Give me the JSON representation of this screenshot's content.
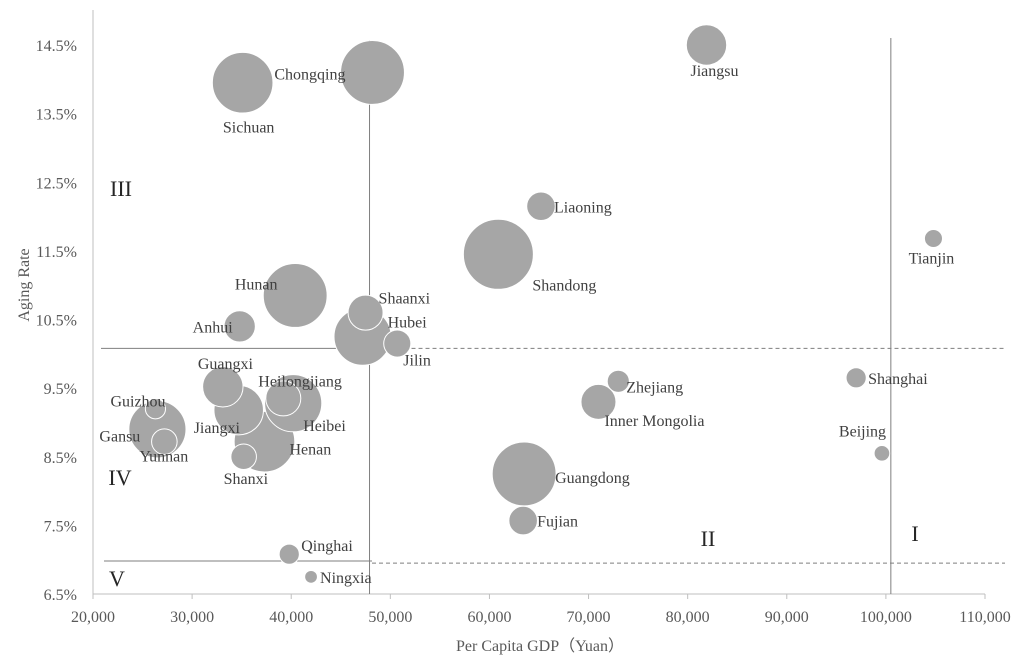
{
  "chart_data": {
    "type": "bubble",
    "xlabel": "Per Capita GDP（Yuan）",
    "ylabel": "Aging Rate",
    "xlim": [
      20000,
      110000
    ],
    "ylim": [
      6.5,
      15.0
    ],
    "x_ticks": [
      "20,000",
      "30,000",
      "40,000",
      "50,000",
      "60,000",
      "70,000",
      "80,000",
      "90,000",
      "100,000",
      "110,000"
    ],
    "y_ticks": [
      "6.5%",
      "7.5%",
      "8.5%",
      "9.5%",
      "10.5%",
      "11.5%",
      "12.5%",
      "13.5%",
      "14.5%"
    ],
    "points": [
      {
        "name": "Jiangsu",
        "x": 81900,
        "y": 14.5,
        "size": 2
      },
      {
        "name": "Chongqing",
        "x": 48200,
        "y": 14.1,
        "size": 5
      },
      {
        "name": "Sichuan",
        "x": 35100,
        "y": 13.95,
        "size": 4.5
      },
      {
        "name": "Liaoning",
        "x": 65200,
        "y": 12.15,
        "size": 1
      },
      {
        "name": "Tianjin",
        "x": 104800,
        "y": 11.68,
        "size": 0.4
      },
      {
        "name": "Shandong",
        "x": 60900,
        "y": 11.45,
        "size": 6
      },
      {
        "name": "Hunan",
        "x": 40400,
        "y": 10.85,
        "size": 5
      },
      {
        "name": "Shaanxi",
        "x": 47500,
        "y": 10.6,
        "size": 1.5
      },
      {
        "name": "Anhui",
        "x": 34800,
        "y": 10.4,
        "size": 1.2
      },
      {
        "name": "Hubei",
        "x": 47200,
        "y": 10.25,
        "size": 4
      },
      {
        "name": "Jilin",
        "x": 50700,
        "y": 10.15,
        "size": 0.9
      },
      {
        "name": "Guangxi",
        "x": 33100,
        "y": 9.52,
        "size": 2
      },
      {
        "name": "Zhejiang",
        "x": 73000,
        "y": 9.6,
        "size": 0.6
      },
      {
        "name": "Shanghai",
        "x": 97000,
        "y": 9.65,
        "size": 0.5
      },
      {
        "name": "Heilongjiang",
        "x": 39200,
        "y": 9.35,
        "size": 1.5
      },
      {
        "name": "Inner Mongolia",
        "x": 71000,
        "y": 9.3,
        "size": 1.5
      },
      {
        "name": "Heibei",
        "x": 40200,
        "y": 9.28,
        "size": 4
      },
      {
        "name": "Guizhou",
        "x": 26300,
        "y": 9.2,
        "size": 0.5
      },
      {
        "name": "Jiangxi",
        "x": 34700,
        "y": 9.18,
        "size": 3
      },
      {
        "name": "Gansu",
        "x": 26500,
        "y": 8.9,
        "size": 4
      },
      {
        "name": "Yunnan",
        "x": 27200,
        "y": 8.72,
        "size": 0.8
      },
      {
        "name": "Henan",
        "x": 37300,
        "y": 8.72,
        "size": 4.5
      },
      {
        "name": "Beijing",
        "x": 99600,
        "y": 8.55,
        "size": 0.3
      },
      {
        "name": "Shanxi",
        "x": 35200,
        "y": 8.5,
        "size": 0.8
      },
      {
        "name": "Guangdong",
        "x": 63500,
        "y": 8.25,
        "size": 5
      },
      {
        "name": "Fujian",
        "x": 63400,
        "y": 7.57,
        "size": 1
      },
      {
        "name": "Qinghai",
        "x": 39800,
        "y": 7.08,
        "size": 0.5
      },
      {
        "name": "Ningxia",
        "x": 42000,
        "y": 6.75,
        "size": 0.2
      }
    ],
    "quadrant_labels": [
      "I",
      "II",
      "III",
      "IV",
      "V"
    ],
    "dividers": {
      "vertical_x": [
        47900,
        100500
      ],
      "horizontal_solid_y": [
        10.08,
        6.98
      ],
      "horizontal_dashed_y": [
        10.08,
        6.95
      ]
    },
    "grid": false,
    "legend": "none"
  }
}
